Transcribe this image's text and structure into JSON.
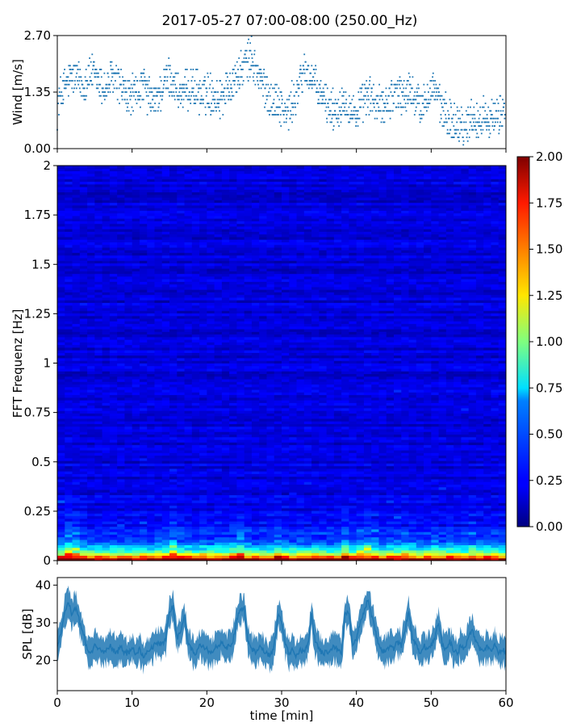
{
  "title": "2017-05-27 07:00-08:00 (250.00_Hz)",
  "chart_data": [
    {
      "type": "scatter",
      "name": "wind",
      "ylabel": "Wind [m/s]",
      "xlim": [
        0,
        60
      ],
      "ylim": [
        0,
        2.7
      ],
      "yticks": [
        "0.00",
        "1.35",
        "2.70"
      ],
      "y_tick_values": [
        0,
        1.35,
        2.7
      ],
      "marker_color": "#1f77b4",
      "x": [
        0,
        0.5,
        1,
        1.5,
        2,
        2.5,
        3,
        3.5,
        4,
        4.5,
        5,
        5.5,
        6,
        6.5,
        7,
        7.5,
        8,
        8.5,
        9,
        9.5,
        10,
        10.5,
        11,
        11.5,
        12,
        12.5,
        13,
        13.5,
        14,
        14.5,
        15,
        15.5,
        16,
        16.5,
        17,
        17.5,
        18,
        18.5,
        19,
        19.5,
        20,
        20.5,
        21,
        21.5,
        22,
        22.5,
        23,
        23.5,
        24,
        24.5,
        25,
        25.5,
        26,
        26.5,
        27,
        27.5,
        28,
        28.5,
        29,
        29.5,
        30,
        30.5,
        31,
        31.5,
        32,
        32.5,
        33,
        33.5,
        34,
        34.5,
        35,
        35.5,
        36,
        36.5,
        37,
        37.5,
        38,
        38.5,
        39,
        39.5,
        40,
        40.5,
        41,
        41.5,
        42,
        42.5,
        43,
        43.5,
        44,
        44.5,
        45,
        45.5,
        46,
        46.5,
        47,
        47.5,
        48,
        48.5,
        49,
        49.5,
        50,
        50.5,
        51,
        51.5,
        52,
        52.5,
        53,
        53.5,
        54,
        54.5,
        55,
        55.5,
        56,
        56.5,
        57,
        57.5,
        58,
        58.5,
        59,
        59.5,
        60
      ],
      "y": [
        1.0,
        1.3,
        1.5,
        1.6,
        1.7,
        1.7,
        1.6,
        1.5,
        1.7,
        1.8,
        1.7,
        1.6,
        1.5,
        1.4,
        1.6,
        1.7,
        1.6,
        1.5,
        1.3,
        1.2,
        1.3,
        1.3,
        1.4,
        1.5,
        1.3,
        1.2,
        1.1,
        1.3,
        1.4,
        1.6,
        1.7,
        1.6,
        1.4,
        1.3,
        1.3,
        1.4,
        1.5,
        1.4,
        1.3,
        1.2,
        1.4,
        1.3,
        1.3,
        1.2,
        1.3,
        1.4,
        1.5,
        1.6,
        1.7,
        1.8,
        2.0,
        2.1,
        2.2,
        1.9,
        1.7,
        1.5,
        1.4,
        1.2,
        1.1,
        1.2,
        1.0,
        0.8,
        0.9,
        1.1,
        1.3,
        1.6,
        1.9,
        1.8,
        1.7,
        1.5,
        1.3,
        1.2,
        1.1,
        1.0,
        0.9,
        1.0,
        1.1,
        1.2,
        1.0,
        0.9,
        0.8,
        1.0,
        1.1,
        1.3,
        1.2,
        1.1,
        1.0,
        1.0,
        1.1,
        1.2,
        1.3,
        1.4,
        1.3,
        1.2,
        1.4,
        1.3,
        1.2,
        1.0,
        1.1,
        1.3,
        1.4,
        1.5,
        1.1,
        0.9,
        0.8,
        0.7,
        0.6,
        0.7,
        0.6,
        0.5,
        0.6,
        0.8,
        0.7,
        0.6,
        0.8,
        0.9,
        0.7,
        0.6,
        0.8,
        0.9,
        1.0
      ]
    },
    {
      "type": "heatmap",
      "name": "spectrogram",
      "ylabel": "FFT Frequenz [Hz]",
      "xlim": [
        0,
        60
      ],
      "ylim": [
        0,
        2
      ],
      "yticks": [
        "0",
        "0.25",
        "0.5",
        "0.75",
        "1",
        "1.25",
        "1.5",
        "1.75",
        "2"
      ],
      "y_tick_values": [
        0,
        0.25,
        0.5,
        0.75,
        1,
        1.25,
        1.5,
        1.75,
        2
      ],
      "colormap": "jet",
      "clim": [
        0,
        2
      ],
      "colorbar_ticks": [
        "0.00",
        "0.25",
        "0.50",
        "0.75",
        "1.00",
        "1.25",
        "1.50",
        "1.75",
        "2.00"
      ],
      "colorbar_tick_values": [
        0,
        0.25,
        0.5,
        0.75,
        1,
        1.25,
        1.5,
        1.75,
        2
      ],
      "background_level": 0.18,
      "low_frequency_level": 1.8
    },
    {
      "type": "area",
      "name": "spl",
      "ylabel": "SPL [dB]",
      "xlabel": "time [min]",
      "xlim": [
        0,
        60
      ],
      "ylim": [
        12,
        42
      ],
      "xticks": [
        "0",
        "10",
        "20",
        "30",
        "40",
        "50",
        "60"
      ],
      "x_tick_values": [
        0,
        10,
        20,
        30,
        40,
        50,
        60
      ],
      "yticks": [
        "20",
        "30",
        "40"
      ],
      "y_tick_values": [
        20,
        30,
        40
      ],
      "line_color": "#1f77b4",
      "x": [
        0,
        0.5,
        1,
        1.5,
        2,
        2.5,
        3,
        3.5,
        4,
        4.5,
        5,
        5.5,
        6,
        6.5,
        7,
        7.5,
        8,
        8.5,
        9,
        9.5,
        10,
        10.5,
        11,
        11.5,
        12,
        12.5,
        13,
        13.5,
        14,
        14.5,
        15,
        15.5,
        16,
        16.5,
        17,
        17.5,
        18,
        18.5,
        19,
        19.5,
        20,
        20.5,
        21,
        21.5,
        22,
        22.5,
        23,
        23.5,
        24,
        24.5,
        25,
        25.5,
        26,
        26.5,
        27,
        27.5,
        28,
        28.5,
        29,
        29.5,
        30,
        30.5,
        31,
        31.5,
        32,
        32.5,
        33,
        33.5,
        34,
        34.5,
        35,
        35.5,
        36,
        36.5,
        37,
        37.5,
        38,
        38.5,
        39,
        39.5,
        40,
        40.5,
        41,
        41.5,
        42,
        42.5,
        43,
        43.5,
        44,
        44.5,
        45,
        45.5,
        46,
        46.5,
        47,
        47.5,
        48,
        48.5,
        49,
        49.5,
        50,
        50.5,
        51,
        51.5,
        52,
        52.5,
        53,
        53.5,
        54,
        54.5,
        55,
        55.5,
        56,
        56.5,
        57,
        57.5,
        58,
        58.5,
        59,
        59.5,
        60
      ],
      "y": [
        24,
        27,
        33,
        35,
        32,
        34,
        30,
        27,
        23,
        22,
        24,
        23,
        22,
        23,
        24,
        23,
        22,
        24,
        22,
        22,
        23,
        22,
        23,
        21,
        22,
        23,
        24,
        25,
        24,
        26,
        33,
        34,
        26,
        27,
        32,
        24,
        23,
        22,
        24,
        24,
        23,
        22,
        23,
        24,
        25,
        23,
        24,
        25,
        31,
        33,
        34,
        25,
        23,
        22,
        24,
        23,
        22,
        21,
        24,
        32,
        31,
        24,
        22,
        23,
        21,
        23,
        22,
        24,
        32,
        25,
        23,
        22,
        22,
        23,
        24,
        23,
        22,
        32,
        33,
        24,
        26,
        30,
        33,
        36,
        32,
        28,
        24,
        22,
        23,
        24,
        23,
        25,
        24,
        28,
        33,
        26,
        24,
        22,
        24,
        23,
        24,
        26,
        30,
        24,
        23,
        25,
        23,
        22,
        24,
        23,
        26,
        28,
        25,
        23,
        22,
        24,
        23,
        24,
        22,
        23,
        22
      ],
      "band": 3.5
    }
  ]
}
